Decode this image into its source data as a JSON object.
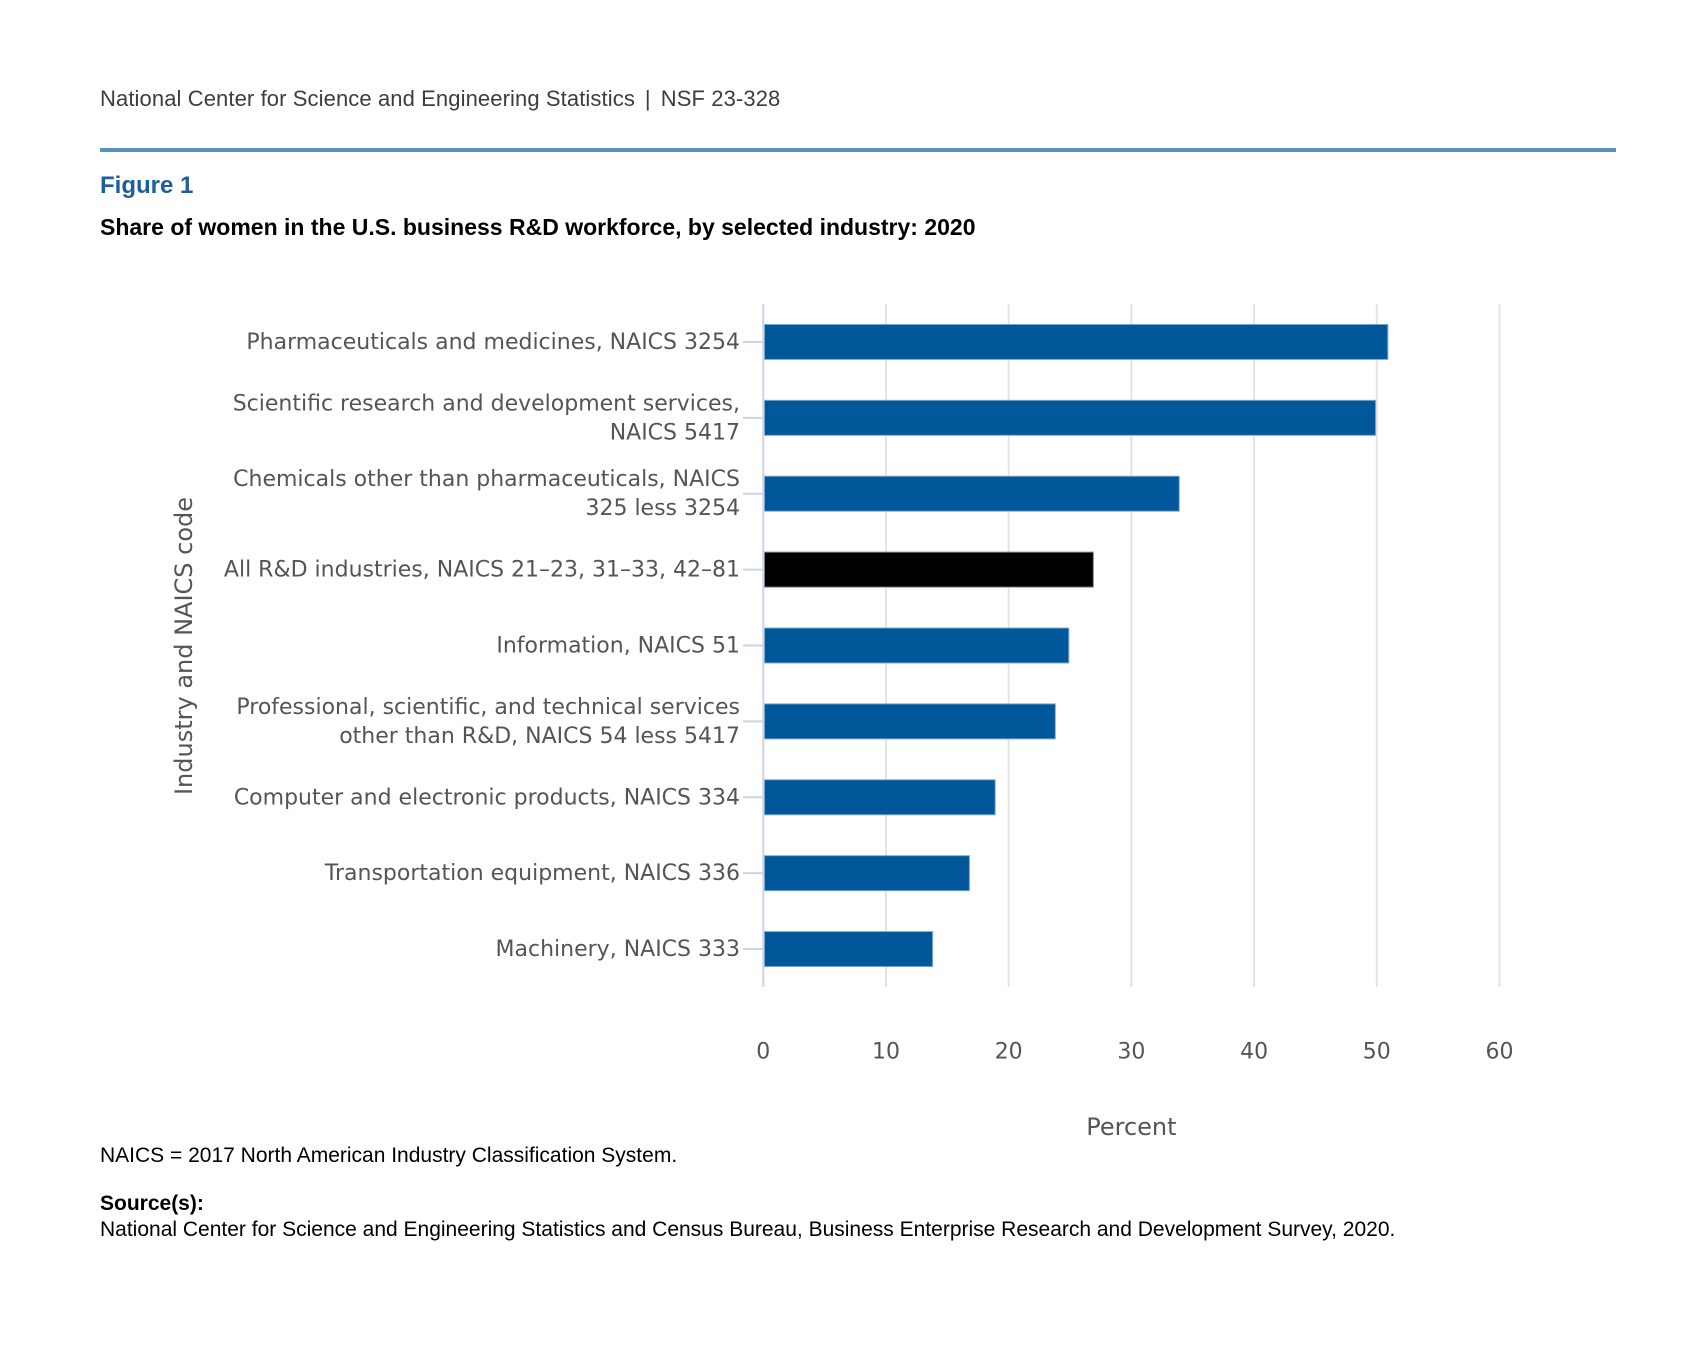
{
  "header": {
    "org": "National Center for Science and Engineering Statistics",
    "separator": "|",
    "report_id": "NSF 23-328"
  },
  "figure": {
    "label": "Figure 1",
    "title": "Share of women in the U.S. business R&D workforce, by selected industry: 2020"
  },
  "colors": {
    "bar": "#00579a",
    "highlight_bar": "#000000",
    "rule": "#5b8fbd",
    "figure_label": "#1d5f9c"
  },
  "chart_data": {
    "type": "bar",
    "orientation": "horizontal",
    "title": "Share of women in the U.S. business R&D workforce, by selected industry: 2020",
    "xlabel": "Percent",
    "ylabel": "Industry and NAICS code",
    "xlim": [
      0,
      60
    ],
    "xticks": [
      "0",
      "10",
      "20",
      "30",
      "40",
      "50",
      "60"
    ],
    "xtick_values": [
      0,
      10,
      20,
      30,
      40,
      50,
      60
    ],
    "grid": true,
    "legend": "none",
    "categories": [
      [
        "Pharmaceuticals and medicines, NAICS 3254"
      ],
      [
        "Scientific research and development services,",
        "NAICS 5417"
      ],
      [
        "Chemicals other than pharmaceuticals, NAICS",
        "325 less 3254"
      ],
      [
        "All R&D industries, NAICS 21–23, 31–33, 42–81"
      ],
      [
        "Information, NAICS 51"
      ],
      [
        "Professional, scientific, and technical services",
        "other than R&D, NAICS 54 less 5417"
      ],
      [
        "Computer and electronic products, NAICS 334"
      ],
      [
        "Transportation equipment, NAICS 336"
      ],
      [
        "Machinery, NAICS 333"
      ]
    ],
    "values": [
      50.9,
      49.9,
      33.9,
      26.9,
      24.9,
      23.8,
      18.9,
      16.8,
      13.8
    ],
    "highlight": [
      false,
      false,
      false,
      true,
      false,
      false,
      false,
      false,
      false
    ]
  },
  "footnote": "NAICS = 2017 North American Industry Classification System.",
  "source": {
    "heading": "Source(s):",
    "text": "National Center for Science and Engineering Statistics and Census Bureau, Business Enterprise Research and Development Survey, 2020."
  }
}
